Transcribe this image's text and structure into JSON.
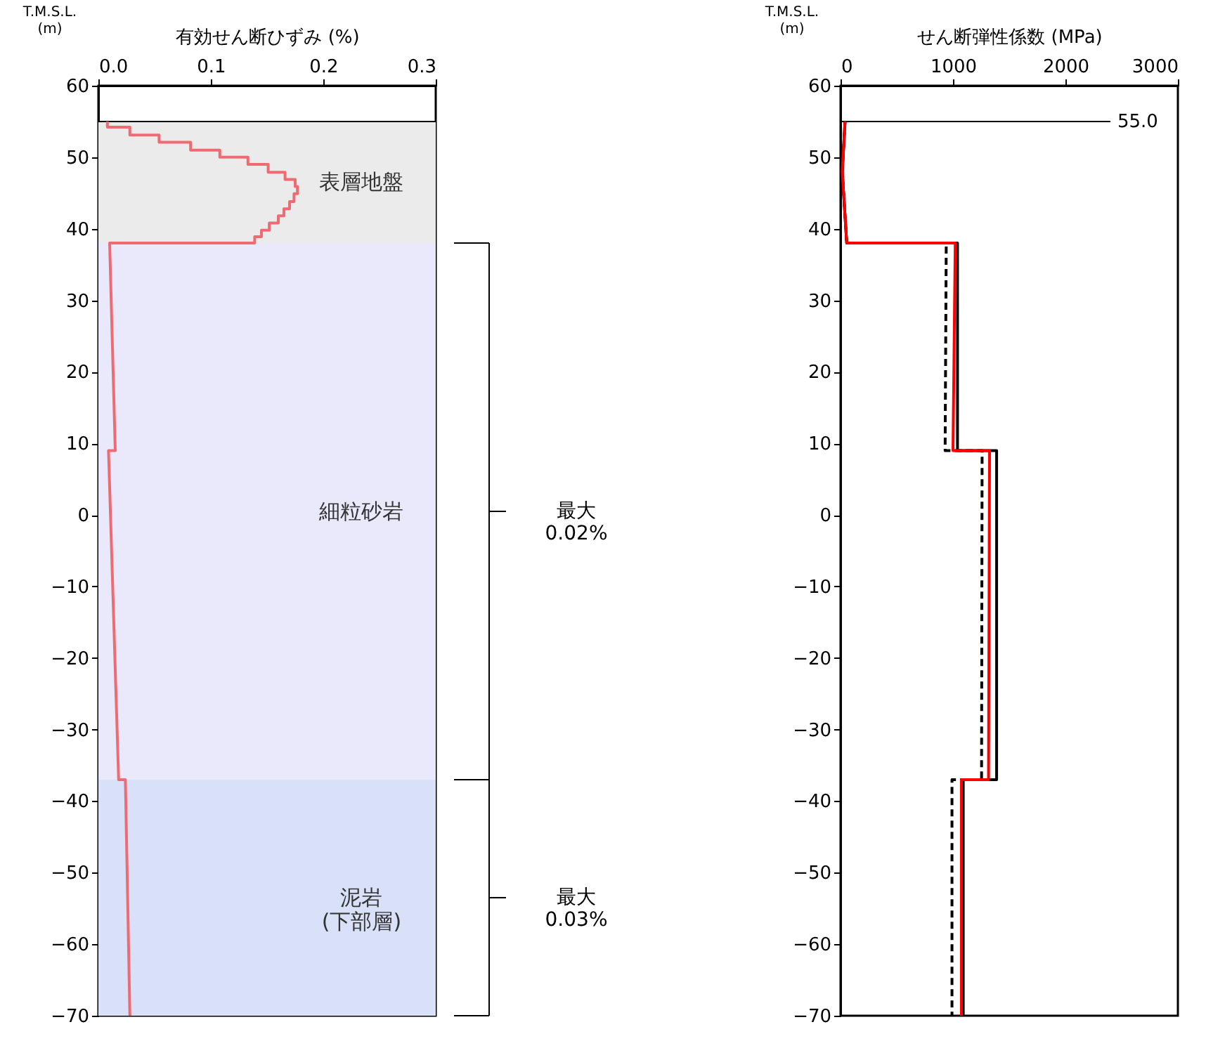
{
  "chart_data": [
    {
      "type": "line",
      "xlabel": "有効せん断ひずみ (%)",
      "ylabel": "T.M.S.L.\n(m)",
      "xlim": [
        0,
        0.3
      ],
      "xticks": [
        {
          "value": 0,
          "label": "0.0"
        },
        {
          "value": 0.1,
          "label": "0.1"
        },
        {
          "value": 0.2,
          "label": "0.2"
        },
        {
          "value": 0.3,
          "label": "0.3"
        }
      ],
      "ylim": [
        -70,
        60
      ],
      "yticks": [
        60,
        50,
        40,
        30,
        20,
        10,
        0,
        -10,
        -20,
        -30,
        -40,
        -50,
        -60,
        -70
      ],
      "grid": false,
      "marker": "none",
      "series": [
        {
          "color": "#ef6b73",
          "line_style": "solid",
          "x": [
            0.008,
            0.008,
            0.028,
            0.028,
            0.054,
            0.054,
            0.082,
            0.082,
            0.108,
            0.108,
            0.133,
            0.133,
            0.151,
            0.151,
            0.166,
            0.166,
            0.175,
            0.175,
            0.177,
            0.177,
            0.174,
            0.174,
            0.17,
            0.17,
            0.165,
            0.165,
            0.16,
            0.16,
            0.152,
            0.152,
            0.145,
            0.145,
            0.139,
            0.139,
            0.01,
            0.015,
            0.009,
            0.018,
            0.024,
            0.028
          ],
          "values": [
            55,
            54.2,
            54.2,
            53.1,
            53.1,
            52.1,
            52.1,
            51.0,
            51.0,
            50.0,
            50.0,
            49.0,
            49.0,
            47.9,
            47.9,
            46.9,
            46.9,
            45.9,
            45.9,
            44.9,
            44.9,
            43.8,
            43.8,
            42.8,
            42.8,
            41.8,
            41.8,
            40.8,
            40.8,
            39.8,
            39.8,
            38.9,
            38.9,
            38.0,
            38.0,
            9,
            9,
            -37,
            -37,
            -70
          ]
        }
      ],
      "bands": [
        {
          "axis": "y",
          "from": 38,
          "to": 55,
          "label": "表層地盤",
          "color": "#ebebeb"
        },
        {
          "axis": "y",
          "from": -37,
          "to": 38,
          "label": "細粒砂岩",
          "color": "#e9e9fb"
        },
        {
          "axis": "y",
          "from": -70,
          "to": -37,
          "label": "泥岩\n(下部層)",
          "color": "#d9e1f8"
        }
      ],
      "ref_lines": [
        {
          "axis": "y",
          "value": 55,
          "color": "#000000"
        }
      ],
      "annotations": [
        "最大\n0.02%",
        "最大\n0.03%"
      ]
    },
    {
      "type": "line",
      "xlabel": "せん断弾性係数 (MPa)",
      "ylabel": "T.M.S.L.\n(m)",
      "xlim": [
        0,
        3000
      ],
      "xticks": [
        0,
        1000,
        2000,
        3000
      ],
      "ylim": [
        -70,
        60
      ],
      "yticks": [
        60,
        50,
        40,
        30,
        20,
        10,
        0,
        -10,
        -20,
        -30,
        -40,
        -50,
        -60,
        -70
      ],
      "grid": false,
      "marker": "none",
      "series": [
        {
          "color": "#000000",
          "line_style": "solid",
          "x": [
            40,
            15,
            55,
            1040,
            1040,
            1388,
            1388,
            1091,
            1091
          ],
          "values": [
            55,
            48,
            38,
            38,
            9,
            9,
            -37,
            -37,
            -70
          ]
        },
        {
          "color": "#000000",
          "line_style": "dashed",
          "x": [
            40,
            15,
            55,
            940,
            930,
            1259,
            1254,
            991,
            991
          ],
          "values": [
            55,
            48,
            38,
            38,
            9,
            9,
            -37,
            -37,
            -70
          ]
        },
        {
          "color": "#ff0000",
          "line_style": "solid",
          "x": [
            40,
            15,
            55,
            1020,
            1000,
            1325,
            1316,
            1075,
            1075
          ],
          "values": [
            55,
            48,
            38,
            38,
            9,
            9,
            -37,
            -37,
            -70
          ]
        }
      ],
      "ref_lines": [
        {
          "axis": "y",
          "value": 55,
          "label": "55.0",
          "color": "#000000"
        }
      ]
    }
  ]
}
